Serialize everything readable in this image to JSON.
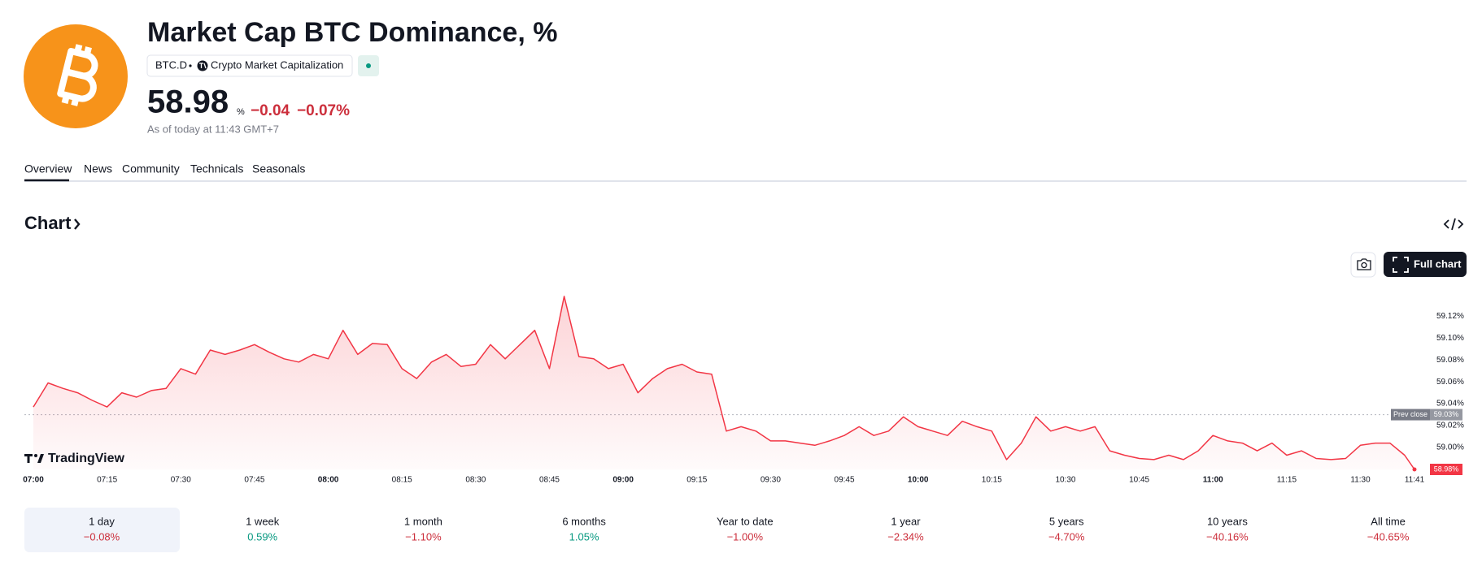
{
  "header": {
    "title": "Market Cap BTC Dominance, %",
    "ticker": "BTC.D",
    "exchange": "Crypto Market Capitalization",
    "price": "58.98",
    "price_unit": "%",
    "change": "−0.04",
    "change_percent": "−0.07%",
    "as_of": "As of today at 11:43 GMT+7"
  },
  "tabs": [
    "Overview",
    "News",
    "Community",
    "Technicals",
    "Seasonals"
  ],
  "section_title": "Chart",
  "full_chart_button": "Full chart",
  "chart_data": {
    "type": "line",
    "color": "#f23645",
    "x": [
      "07:00",
      "07:03",
      "07:06",
      "07:09",
      "07:12",
      "07:15",
      "07:18",
      "07:21",
      "07:24",
      "07:27",
      "07:30",
      "07:33",
      "07:36",
      "07:39",
      "07:42",
      "07:45",
      "07:48",
      "07:51",
      "07:54",
      "07:57",
      "08:00",
      "08:03",
      "08:06",
      "08:09",
      "08:12",
      "08:15",
      "08:18",
      "08:21",
      "08:24",
      "08:27",
      "08:30",
      "08:33",
      "08:36",
      "08:39",
      "08:42",
      "08:45",
      "08:48",
      "08:51",
      "08:54",
      "08:57",
      "09:00",
      "09:03",
      "09:06",
      "09:09",
      "09:12",
      "09:15",
      "09:18",
      "09:21",
      "09:24",
      "09:27",
      "09:30",
      "09:33",
      "09:36",
      "09:39",
      "09:42",
      "09:45",
      "09:48",
      "09:51",
      "09:54",
      "09:57",
      "10:00",
      "10:03",
      "10:06",
      "10:09",
      "10:12",
      "10:15",
      "10:18",
      "10:21",
      "10:24",
      "10:27",
      "10:30",
      "10:33",
      "10:36",
      "10:39",
      "10:42",
      "10:45",
      "10:48",
      "10:51",
      "10:54",
      "10:57",
      "11:00",
      "11:03",
      "11:06",
      "11:09",
      "11:12",
      "11:15",
      "11:18",
      "11:21",
      "11:24",
      "11:27",
      "11:30",
      "11:33",
      "11:36",
      "11:39",
      "11:41"
    ],
    "values": [
      59.037,
      59.059,
      59.054,
      59.05,
      59.043,
      59.037,
      59.05,
      59.046,
      59.052,
      59.054,
      59.072,
      59.067,
      59.089,
      59.085,
      59.089,
      59.094,
      59.087,
      59.081,
      59.078,
      59.085,
      59.081,
      59.107,
      59.085,
      59.095,
      59.094,
      59.072,
      59.063,
      59.078,
      59.085,
      59.074,
      59.076,
      59.094,
      59.081,
      59.094,
      59.107,
      59.072,
      59.138,
      59.083,
      59.081,
      59.072,
      59.076,
      59.05,
      59.063,
      59.072,
      59.076,
      59.069,
      59.067,
      59.015,
      59.019,
      59.015,
      59.006,
      59.006,
      59.004,
      59.002,
      59.006,
      59.011,
      59.019,
      59.011,
      59.015,
      59.028,
      59.019,
      59.015,
      59.011,
      59.024,
      59.019,
      59.015,
      58.989,
      59.004,
      59.028,
      59.015,
      59.019,
      59.015,
      59.019,
      58.997,
      58.993,
      58.99,
      58.989,
      58.993,
      58.989,
      58.997,
      59.011,
      59.006,
      59.004,
      58.997,
      59.004,
      58.993,
      58.997,
      58.99,
      58.989,
      58.99,
      59.002,
      59.004,
      59.004,
      58.993,
      58.98
    ],
    "xlim": [
      "07:00",
      "11:41"
    ],
    "xticks": [
      "07:00",
      "07:15",
      "07:30",
      "07:45",
      "08:00",
      "08:15",
      "08:30",
      "08:45",
      "09:00",
      "09:15",
      "09:30",
      "09:45",
      "10:00",
      "10:15",
      "10:30",
      "10:45",
      "11:00",
      "11:15",
      "11:30",
      "11:41"
    ],
    "ylim": [
      58.98,
      59.155
    ],
    "yticks": [
      {
        "value": 59.12,
        "label": "59.12%"
      },
      {
        "value": 59.1,
        "label": "59.10%"
      },
      {
        "value": 59.08,
        "label": "59.08%"
      },
      {
        "value": 59.06,
        "label": "59.06%"
      },
      {
        "value": 59.04,
        "label": "59.04%"
      },
      {
        "value": 59.02,
        "label": "59.02%"
      },
      {
        "value": 59.0,
        "label": "59.00%"
      }
    ],
    "prev_close": {
      "label": "Prev close",
      "value": 59.03,
      "value_label": "59.03%"
    },
    "last_value_label": "58.98%",
    "watermark": "TradingView"
  },
  "periods": [
    {
      "label": "1 day",
      "change": "−0.08%"
    },
    {
      "label": "1 week",
      "change": "0.59%"
    },
    {
      "label": "1 month",
      "change": "−1.10%"
    },
    {
      "label": "6 months",
      "change": "1.05%"
    },
    {
      "label": "Year to date",
      "change": "−1.00%"
    },
    {
      "label": "1 year",
      "change": "−2.34%"
    },
    {
      "label": "5 years",
      "change": "−4.70%"
    },
    {
      "label": "10 years",
      "change": "−40.16%"
    },
    {
      "label": "All time",
      "change": "−40.65%"
    }
  ]
}
